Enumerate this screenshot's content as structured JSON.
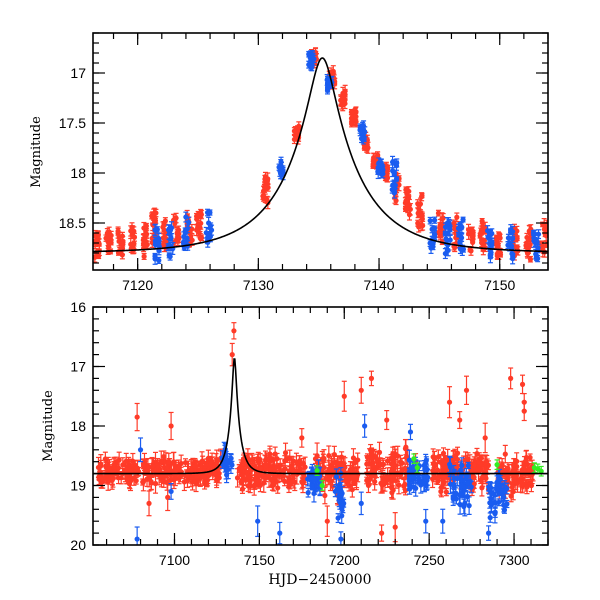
{
  "chart_data": [
    {
      "type": "scatter",
      "panel": "top",
      "title": "",
      "xlabel": "",
      "ylabel": "Magnitude",
      "xlim": [
        7116.3,
        7154.0
      ],
      "ylim": [
        18.97,
        16.6
      ],
      "y_inverted": true,
      "xticks": [
        7120,
        7130,
        7140,
        7150
      ],
      "xtick_labels": [
        "7120",
        "7130",
        "7140",
        "7150"
      ],
      "yticks": [
        17,
        17.5,
        18,
        18.5
      ],
      "ytick_labels": [
        "17",
        "17.5",
        "18",
        "18.5"
      ],
      "model_curve": {
        "t0": 7135.3,
        "baseline": 18.8,
        "peak_mag": 16.85,
        "tE": 6.0,
        "color": "#000000"
      },
      "series": [
        {
          "name": "red-band",
          "color": "#ff3b28",
          "clusters": [
            [
              7116.6,
              18.72
            ],
            [
              7117.6,
              18.72
            ],
            [
              7118.6,
              18.66
            ],
            [
              7119.6,
              18.7
            ],
            [
              7120.6,
              18.68
            ],
            [
              7121.3,
              18.55
            ],
            [
              7122.3,
              18.62
            ],
            [
              7123.2,
              18.6
            ],
            [
              7124.3,
              18.58
            ],
            [
              7125.1,
              18.55
            ],
            [
              7130.6,
              18.15
            ],
            [
              7133.2,
              17.6
            ],
            [
              7134.6,
              16.85
            ],
            [
              7136.1,
              17.05
            ],
            [
              7137.0,
              17.25
            ],
            [
              7137.9,
              17.45
            ],
            [
              7138.9,
              17.7
            ],
            [
              7139.7,
              17.88
            ],
            [
              7140.6,
              18.0
            ],
            [
              7141.5,
              18.15
            ],
            [
              7142.4,
              18.27
            ],
            [
              7143.4,
              18.38
            ],
            [
              7145.1,
              18.55
            ],
            [
              7146.4,
              18.6
            ],
            [
              7147.6,
              18.65
            ],
            [
              7148.6,
              18.62
            ],
            [
              7149.9,
              18.68
            ],
            [
              7151.3,
              18.7
            ],
            [
              7152.4,
              18.72
            ],
            [
              7153.7,
              18.66
            ]
          ]
        },
        {
          "name": "blue-band",
          "color": "#1a5cf0",
          "clusters": [
            [
              7121.6,
              18.72
            ],
            [
              7122.7,
              18.68
            ],
            [
              7124.0,
              18.6
            ],
            [
              7125.9,
              18.55
            ],
            [
              7131.9,
              17.95
            ],
            [
              7134.4,
              16.88
            ],
            [
              7135.9,
              17.12
            ],
            [
              7138.6,
              17.6
            ],
            [
              7140.1,
              17.95
            ],
            [
              7141.3,
              18.05
            ],
            [
              7144.4,
              18.6
            ],
            [
              7145.7,
              18.65
            ],
            [
              7146.8,
              18.62
            ],
            [
              7149.2,
              18.7
            ],
            [
              7150.9,
              18.72
            ],
            [
              7153.0,
              18.7
            ]
          ]
        }
      ]
    },
    {
      "type": "scatter",
      "panel": "bottom",
      "title": "",
      "xlabel": "HJD−2450000",
      "ylabel": "Magnitude",
      "xlim": [
        7052,
        7320
      ],
      "ylim": [
        20,
        16
      ],
      "y_inverted": true,
      "xticks": [
        7100,
        7150,
        7200,
        7250,
        7300
      ],
      "xtick_labels": [
        "7100",
        "7150",
        "7200",
        "7250",
        "7300"
      ],
      "yticks": [
        16,
        17,
        18,
        19,
        20
      ],
      "ytick_labels": [
        "16",
        "17",
        "18",
        "19",
        "20"
      ],
      "model_curve": {
        "t0": 7135.3,
        "baseline": 18.8,
        "peak_mag": 16.85,
        "tE": 6.0,
        "color": "#000000"
      },
      "series": [
        {
          "name": "red-band",
          "color": "#ff3b28",
          "ranges": [
            [
              7055,
              7128,
              18.75,
              0.18
            ],
            [
              7137,
              7178,
              18.75,
              0.25
            ],
            [
              7183,
              7208,
              18.8,
              0.3
            ],
            [
              7213,
              7238,
              18.75,
              0.3
            ],
            [
              7252,
              7285,
              18.75,
              0.3
            ],
            [
              7290,
              7312,
              18.8,
              0.3
            ]
          ],
          "outliers": [
            [
              7135,
              16.4
            ],
            [
              7134,
              16.8
            ],
            [
              7175,
              18.2
            ],
            [
              7184,
              18.5
            ],
            [
              7200,
              17.5
            ],
            [
              7210,
              17.4
            ],
            [
              7216,
              17.2
            ],
            [
              7225,
              17.9
            ],
            [
              7242,
              18.6
            ],
            [
              7262,
              17.6
            ],
            [
              7268,
              17.9
            ],
            [
              7272,
              17.4
            ],
            [
              7283,
              18.2
            ],
            [
              7298,
              17.2
            ],
            [
              7305,
              17.3
            ],
            [
              7306,
              17.75
            ],
            [
              7306,
              17.6
            ],
            [
              7098,
              18.0
            ],
            [
              7078,
              17.85
            ],
            [
              7085,
              19.3
            ],
            [
              7096,
              19.2
            ],
            [
              7190,
              19.6
            ],
            [
              7222,
              19.8
            ],
            [
              7230,
              19.7
            ]
          ]
        },
        {
          "name": "blue-band",
          "color": "#1a5cf0",
          "ranges": [
            [
              7128,
              7134,
              18.6,
              0.2
            ],
            [
              7178,
              7186,
              18.9,
              0.2
            ],
            [
              7194,
              7200,
              19.2,
              0.4
            ],
            [
              7238,
              7250,
              18.85,
              0.25
            ],
            [
              7262,
              7275,
              19.0,
              0.3
            ],
            [
              7285,
              7296,
              19.1,
              0.35
            ]
          ],
          "outliers": [
            [
              7078,
              19.9
            ],
            [
              7080,
              18.4
            ],
            [
              7098,
              19.1
            ],
            [
              7149,
              19.6
            ],
            [
              7162,
              19.8
            ],
            [
              7198,
              19.9
            ],
            [
              7210,
              19.3
            ],
            [
              7212,
              18.0
            ],
            [
              7239,
              18.1
            ],
            [
              7248,
              19.6
            ],
            [
              7258,
              19.6
            ],
            [
              7271,
              19.3
            ],
            [
              7285,
              19.8
            ],
            [
              7294,
              19.2
            ]
          ]
        },
        {
          "name": "green-band",
          "color": "#33ee22",
          "points": [
            [
              7184,
              18.75
            ],
            [
              7187,
              19.0
            ],
            [
              7241,
              18.55
            ],
            [
              7243,
              18.7
            ],
            [
              7290,
              18.65
            ],
            [
              7312,
              18.7
            ],
            [
              7314,
              18.72
            ],
            [
              7316,
              18.76
            ]
          ]
        }
      ]
    }
  ]
}
